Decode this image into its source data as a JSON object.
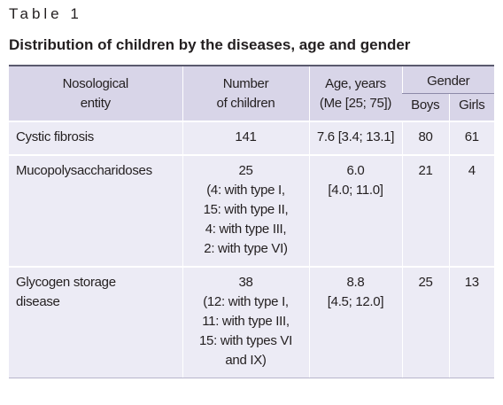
{
  "header": {
    "label": "Table 1",
    "title": "Distribution of children by the diseases, age and gender"
  },
  "table": {
    "columns": [
      [
        "Nosological",
        "entity"
      ],
      [
        "Number",
        "of children"
      ],
      [
        "Age, years",
        "(Me [25; 75])"
      ]
    ],
    "gender_group": "Gender",
    "gender_columns": [
      "Boys",
      "Girls"
    ],
    "rows": [
      [
        [
          "Cystic fibrosis"
        ],
        [
          "141"
        ],
        [
          "7.6 [3.4; 13.1]"
        ],
        [
          "80"
        ],
        [
          "61"
        ]
      ],
      [
        [
          "Mucopolysaccharidoses"
        ],
        [
          "25",
          "(4: with type I,",
          "15: with type II,",
          "4: with type III,",
          "2: with type VI)"
        ],
        [
          "6.0",
          "[4.0; 11.0]"
        ],
        [
          "21"
        ],
        [
          "4"
        ]
      ],
      [
        [
          "Glycogen storage",
          "disease"
        ],
        [
          "38",
          "(12: with type I,",
          "11: with type III,",
          "15: with types VI",
          "and IX)"
        ],
        [
          "8.8",
          "[4.5; 12.0]"
        ],
        [
          "25"
        ],
        [
          "13"
        ]
      ]
    ]
  }
}
